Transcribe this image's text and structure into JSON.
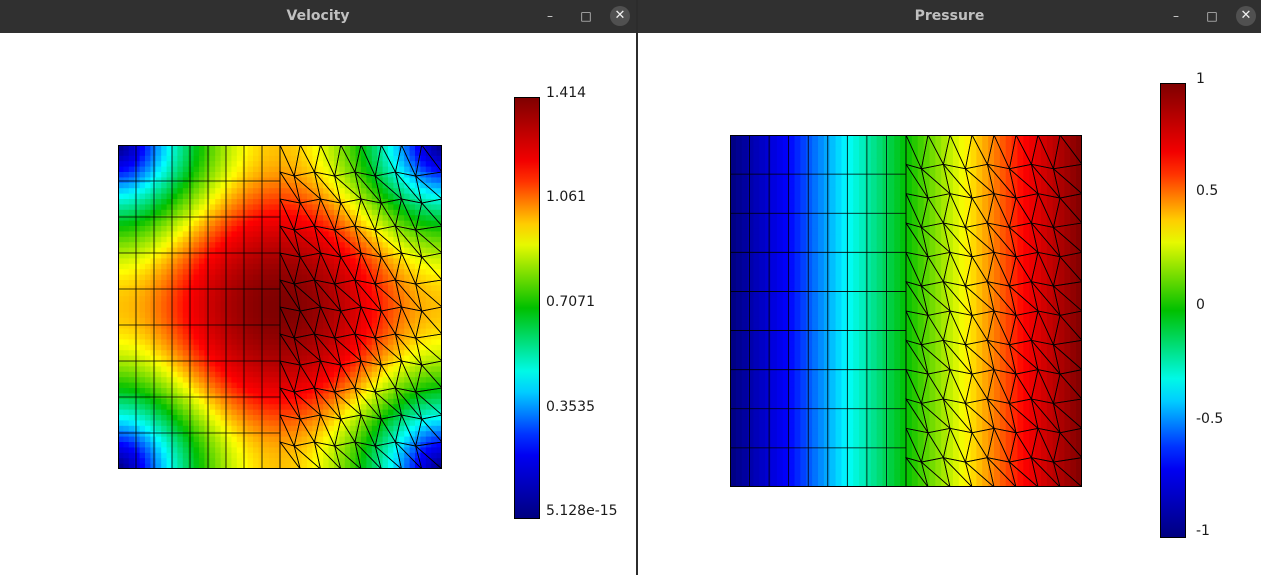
{
  "windows": [
    {
      "id": "velocity",
      "title": "Velocity",
      "field": "velocity",
      "controls": {
        "minimize": "–",
        "maximize": "□",
        "close": "✕"
      },
      "colorbar": {
        "min": 5.128e-15,
        "max": 1.414,
        "labels": [
          "1.414",
          "1.061",
          "0.7071",
          "0.3535",
          "5.128e-15"
        ]
      },
      "mesh": {
        "left_structured_columns": 9,
        "rows": 9,
        "right_triangulated": true
      }
    },
    {
      "id": "pressure",
      "title": "Pressure",
      "field": "pressure",
      "controls": {
        "minimize": "–",
        "maximize": "□",
        "close": "✕"
      },
      "colorbar": {
        "min": -1,
        "max": 1,
        "labels": [
          "1",
          "0.5",
          "0",
          "-0.5",
          "-1"
        ]
      },
      "mesh": {
        "left_structured_columns": 9,
        "rows": 9,
        "right_triangulated": true
      }
    }
  ],
  "colormap": [
    "#00007f",
    "#0000ff",
    "#00ffff",
    "#00c000",
    "#ffff00",
    "#ff0000",
    "#7f0000"
  ]
}
